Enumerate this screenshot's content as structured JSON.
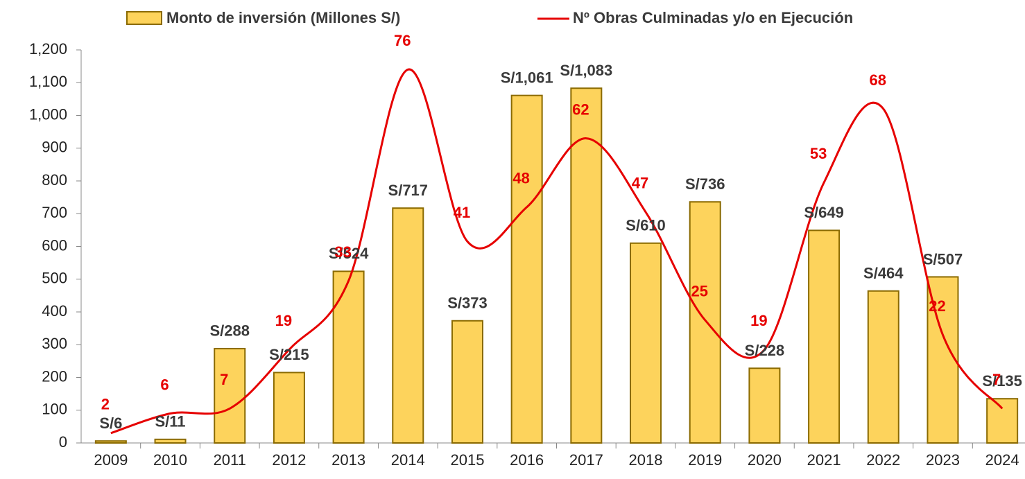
{
  "chart_data": {
    "type": "bar-line",
    "categories": [
      "2009",
      "2010",
      "2011",
      "2012",
      "2013",
      "2014",
      "2015",
      "2016",
      "2017",
      "2018",
      "2019",
      "2020",
      "2021",
      "2022",
      "2023",
      "2024"
    ],
    "series": [
      {
        "name": "Monto de inversión (Millones S/)",
        "type": "bar",
        "color": "#fdd35c",
        "edge_color": "#8a6a00",
        "values": [
          6,
          11,
          288,
          215,
          524,
          717,
          373,
          1061,
          1083,
          610,
          736,
          228,
          649,
          464,
          507,
          135
        ],
        "value_labels": [
          "S/6",
          "S/11",
          "S/288",
          "S/215",
          "S/524",
          "S/717",
          "S/373",
          "S/1,061",
          "S/1,083",
          "S/610",
          "S/736",
          "S/228",
          "S/649",
          "S/464",
          "S/507",
          "S/135"
        ]
      },
      {
        "name": "Nº Obras Culminadas y/o en Ejecución",
        "type": "line",
        "color": "#e60000",
        "axis": "y2",
        "smooth": true,
        "values": [
          2,
          6,
          7,
          19,
          33,
          76,
          41,
          48,
          62,
          47,
          25,
          19,
          53,
          68,
          22,
          7
        ]
      }
    ],
    "ylim": [
      0,
      1200
    ],
    "yticks": [
      0,
      100,
      200,
      300,
      400,
      500,
      600,
      700,
      800,
      900,
      1000,
      1100,
      {
        "value": 1000,
        "label": "1,000"
      },
      {
        "value": 1100,
        "label": "1,100"
      },
      {
        "value": 1200,
        "label": "1,200"
      }
    ],
    "y2lim": [
      0,
      80
    ],
    "grid": false,
    "legend": "top"
  }
}
